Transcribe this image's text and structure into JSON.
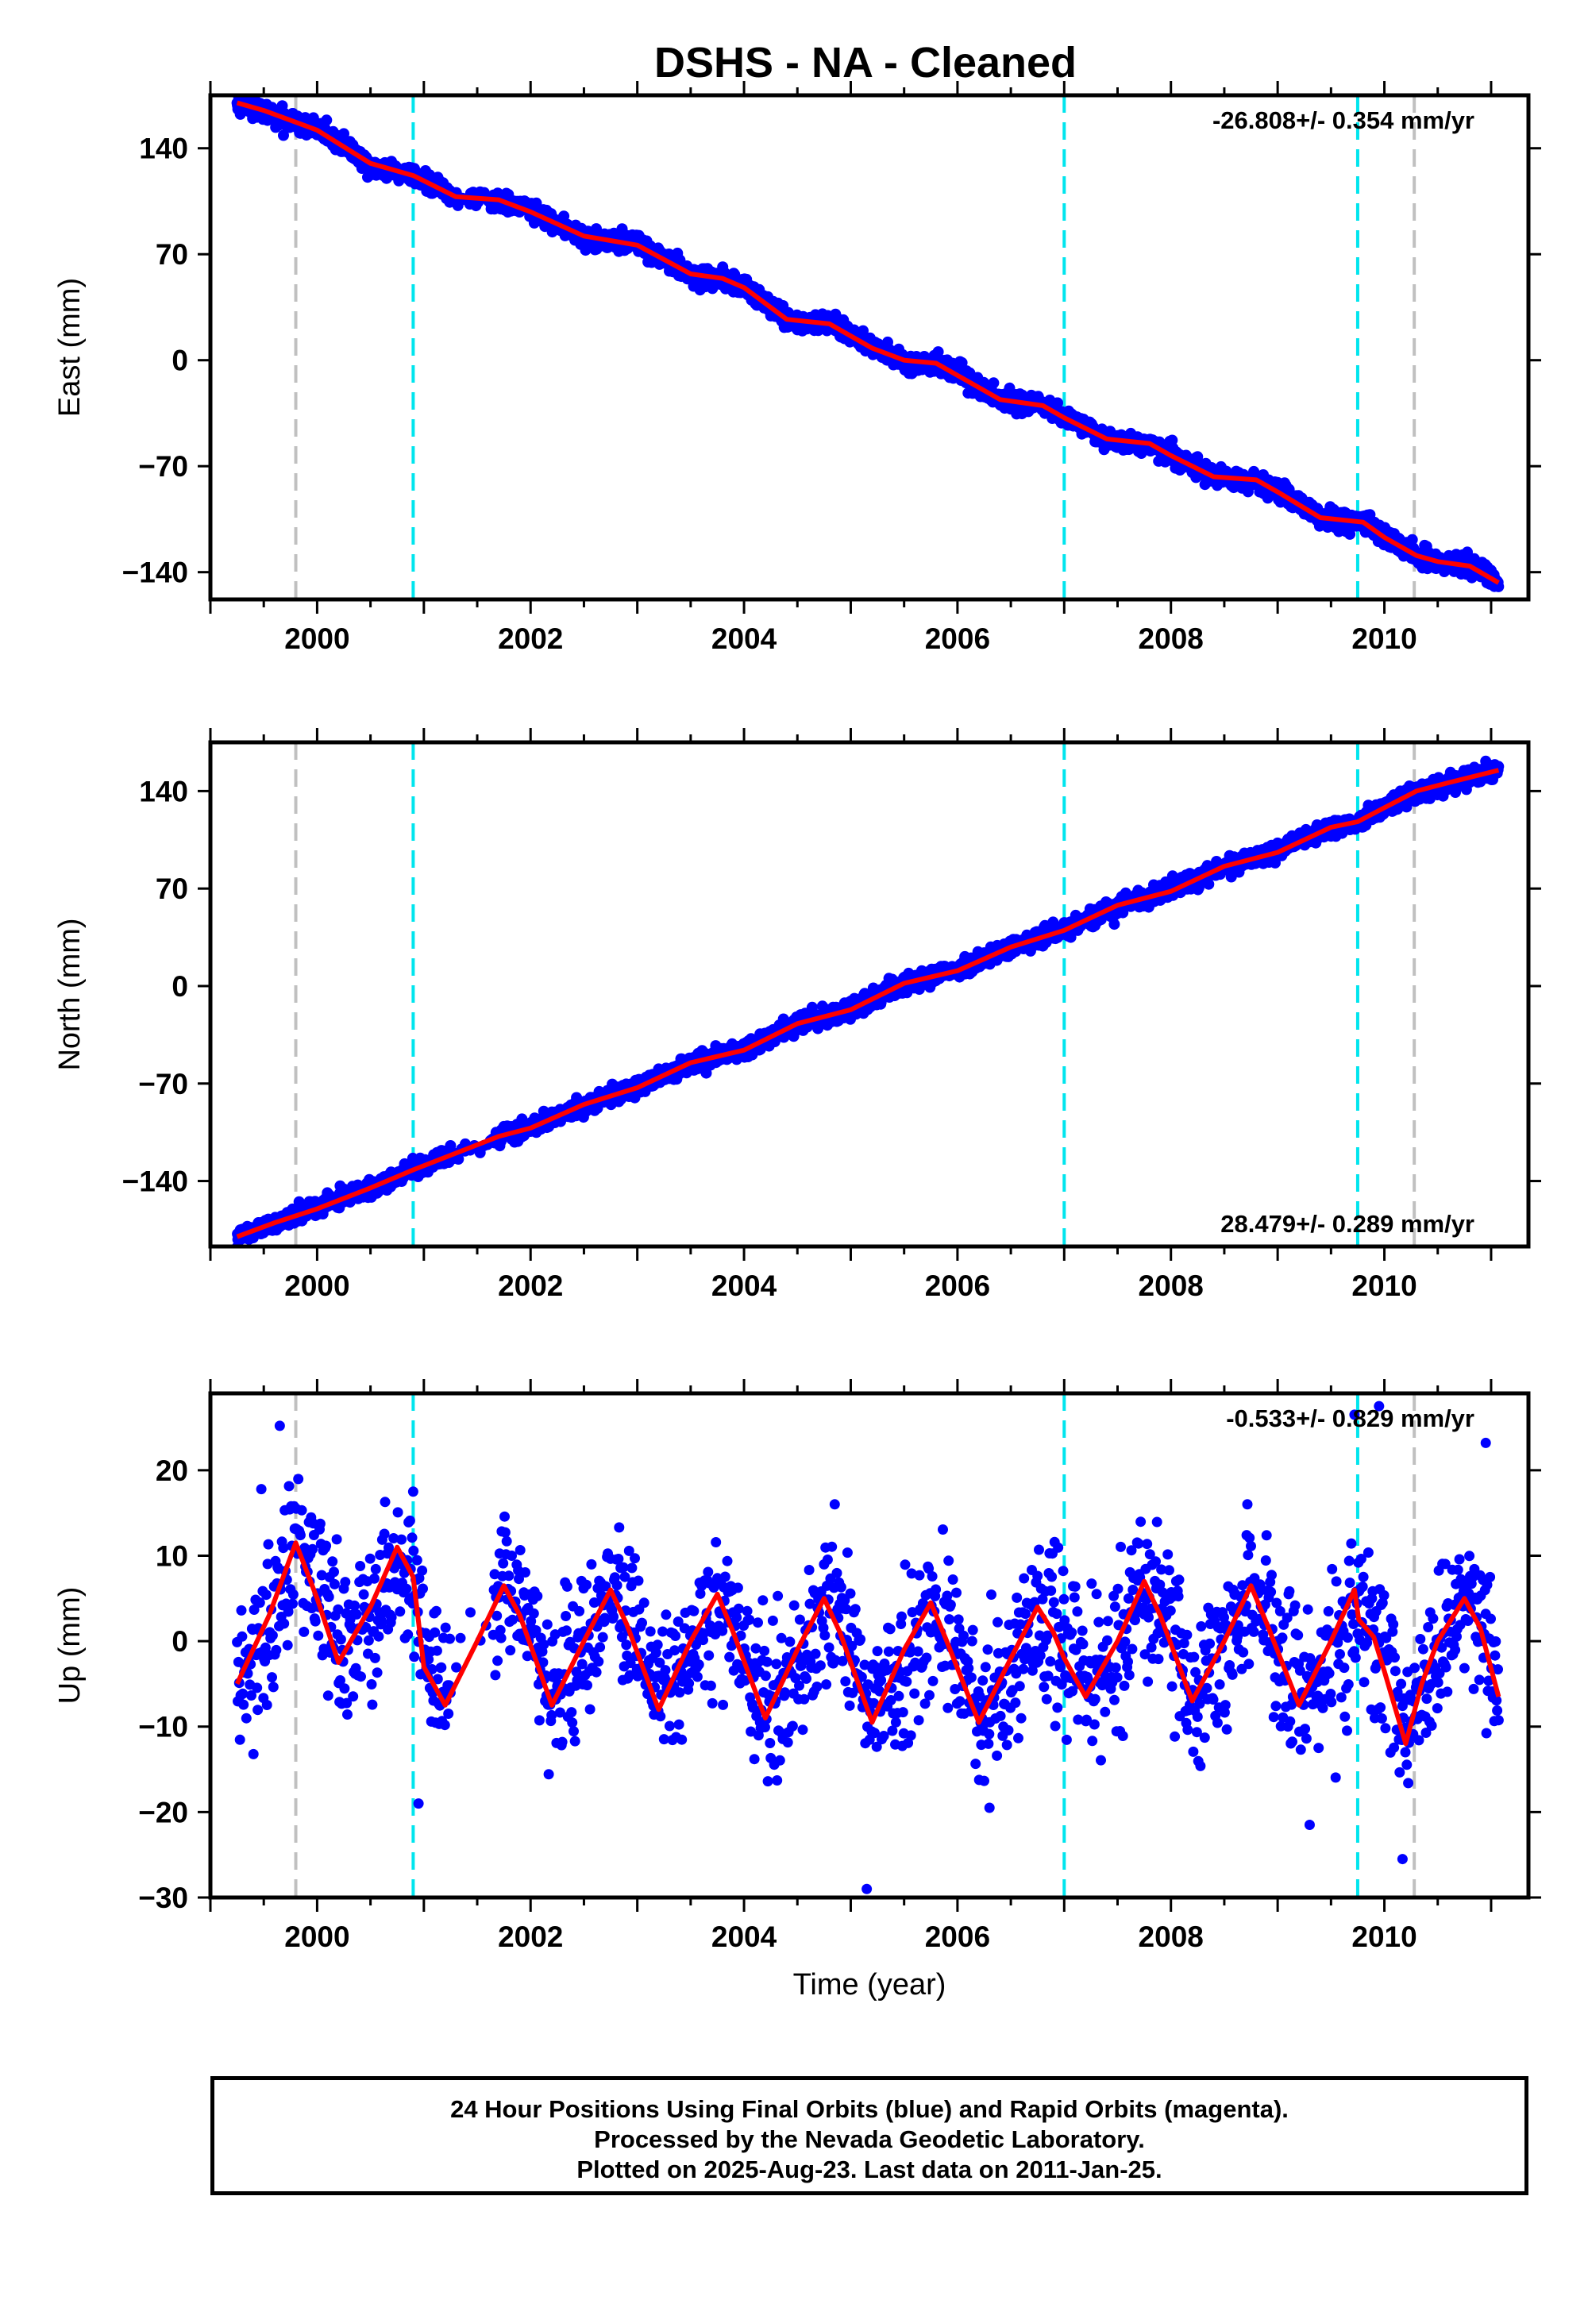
{
  "title": "DSHS  - NA - Cleaned",
  "colors": {
    "data": "#0000ff",
    "model": "#ff0000",
    "offset_antenna": "#00e5ee",
    "offset_other": "#c0c0c0"
  },
  "footer": {
    "line1": "24 Hour Positions Using Final Orbits (blue) and Rapid Orbits (magenta).",
    "line2": "Processed by the Nevada Geodetic Laboratory.",
    "line3": "Plotted on 2025-Aug-23. Last data on 2011-Jan-25."
  },
  "chart_data": [
    {
      "type": "scatter",
      "id": "east",
      "ylabel": "East (mm)",
      "xlabel": "",
      "xlim": [
        1999.0,
        2011.35
      ],
      "ylim": [
        -158,
        175
      ],
      "xticks": [
        2000,
        2002,
        2004,
        2006,
        2008,
        2010
      ],
      "yticks": [
        -140,
        -70,
        0,
        70,
        140
      ],
      "ytick_labels": [
        "−140",
        "−70",
        "0",
        "70",
        "140"
      ],
      "rate_label": "-26.808+/- 0.354 mm/yr",
      "rate_position": "top-right",
      "offsets_antenna": [
        2000.9,
        2007.0,
        2009.75
      ],
      "offsets_other": [
        1999.8,
        2010.28
      ],
      "data_start": 1999.25,
      "data_end": 2011.07,
      "rate_mm_per_yr": -26.808,
      "annual_amplitude": 4,
      "noise": 3,
      "model": [
        [
          1999.25,
          170
        ],
        [
          1999.5,
          165
        ],
        [
          2000.0,
          152
        ],
        [
          2000.5,
          130
        ],
        [
          2000.9,
          122
        ],
        [
          2001.3,
          108
        ],
        [
          2001.7,
          106
        ],
        [
          2002.0,
          98
        ],
        [
          2002.5,
          82
        ],
        [
          2003.0,
          76
        ],
        [
          2003.5,
          57
        ],
        [
          2003.8,
          54
        ],
        [
          2004.0,
          48
        ],
        [
          2004.4,
          27
        ],
        [
          2004.8,
          24
        ],
        [
          2005.2,
          8
        ],
        [
          2005.5,
          0
        ],
        [
          2005.8,
          -2
        ],
        [
          2006.0,
          -10
        ],
        [
          2006.4,
          -26
        ],
        [
          2006.8,
          -30
        ],
        [
          2007.0,
          -38
        ],
        [
          2007.4,
          -52
        ],
        [
          2007.8,
          -55
        ],
        [
          2008.0,
          -63
        ],
        [
          2008.4,
          -77
        ],
        [
          2008.8,
          -79
        ],
        [
          2009.0,
          -87
        ],
        [
          2009.4,
          -104
        ],
        [
          2009.8,
          -107
        ],
        [
          2010.0,
          -117
        ],
        [
          2010.3,
          -129
        ],
        [
          2010.5,
          -133
        ],
        [
          2010.8,
          -136
        ],
        [
          2011.07,
          -147
        ]
      ]
    },
    {
      "type": "scatter",
      "id": "north",
      "ylabel": "North (mm)",
      "xlabel": "",
      "xlim": [
        1999.0,
        2011.35
      ],
      "ylim": [
        -187,
        175
      ],
      "xticks": [
        2000,
        2002,
        2004,
        2006,
        2008,
        2010
      ],
      "yticks": [
        -140,
        -70,
        0,
        70,
        140
      ],
      "ytick_labels": [
        "−140",
        "−70",
        "0",
        "70",
        "140"
      ],
      "rate_label": "28.479+/- 0.289 mm/yr",
      "rate_position": "bottom-right",
      "offsets_antenna": [
        2000.9,
        2007.0,
        2009.75
      ],
      "offsets_other": [
        1999.8,
        2010.28
      ],
      "data_start": 1999.25,
      "data_end": 2011.07,
      "rate_mm_per_yr": 28.479,
      "annual_amplitude": 3,
      "noise": 3,
      "model": [
        [
          1999.25,
          -180
        ],
        [
          1999.6,
          -170
        ],
        [
          2000.0,
          -160
        ],
        [
          2000.5,
          -145
        ],
        [
          2000.9,
          -132
        ],
        [
          2001.3,
          -120
        ],
        [
          2001.7,
          -108
        ],
        [
          2002.0,
          -102
        ],
        [
          2002.5,
          -85
        ],
        [
          2003.0,
          -73
        ],
        [
          2003.5,
          -55
        ],
        [
          2004.0,
          -46
        ],
        [
          2004.5,
          -27
        ],
        [
          2005.0,
          -17
        ],
        [
          2005.5,
          2
        ],
        [
          2006.0,
          11
        ],
        [
          2006.5,
          28
        ],
        [
          2007.0,
          40
        ],
        [
          2007.5,
          58
        ],
        [
          2008.0,
          68
        ],
        [
          2008.5,
          86
        ],
        [
          2009.0,
          96
        ],
        [
          2009.5,
          114
        ],
        [
          2009.75,
          118
        ],
        [
          2010.0,
          128
        ],
        [
          2010.3,
          140
        ],
        [
          2010.6,
          146
        ],
        [
          2011.07,
          155
        ]
      ]
    },
    {
      "type": "scatter",
      "id": "up",
      "ylabel": "Up (mm)",
      "xlabel": "Time (year)",
      "xlim": [
        1999.0,
        2011.35
      ],
      "ylim": [
        -30,
        29
      ],
      "xticks": [
        2000,
        2002,
        2004,
        2006,
        2008,
        2010
      ],
      "yticks": [
        -30,
        -20,
        -10,
        0,
        10,
        20
      ],
      "ytick_labels": [
        "−30",
        "−20",
        "−10",
        "0",
        "10",
        "20"
      ],
      "rate_label": "-0.533+/- 0.829 mm/yr",
      "rate_position": "top-right",
      "offsets_antenna": [
        2000.9,
        2007.0,
        2009.75
      ],
      "offsets_other": [
        1999.8,
        2010.28
      ],
      "data_start": 1999.25,
      "data_end": 2011.07,
      "annual_amplitude": 7,
      "noise": 4.5,
      "outliers": [
        [
          1999.65,
          25.2
        ],
        [
          2005.15,
          -29
        ],
        [
          2009.72,
          26.5
        ],
        [
          2009.95,
          27.5
        ],
        [
          2010.95,
          23.2
        ],
        [
          2010.17,
          -25.5
        ],
        [
          2000.9,
          17.5
        ],
        [
          2000.95,
          -19
        ],
        [
          2006.3,
          -19.5
        ],
        [
          2009.3,
          -21.5
        ]
      ],
      "model": [
        [
          1999.25,
          -5
        ],
        [
          1999.55,
          3
        ],
        [
          1999.8,
          11.5
        ],
        [
          2000.0,
          5
        ],
        [
          2000.2,
          -2.5
        ],
        [
          2000.5,
          4
        ],
        [
          2000.75,
          11
        ],
        [
          2000.9,
          7.5
        ],
        [
          2001.0,
          -3
        ],
        [
          2001.2,
          -7.5
        ],
        [
          2001.5,
          0
        ],
        [
          2001.75,
          6.5
        ],
        [
          2001.9,
          3
        ],
        [
          2002.2,
          -7.5
        ],
        [
          2002.5,
          0
        ],
        [
          2002.75,
          6
        ],
        [
          2002.9,
          2
        ],
        [
          2003.2,
          -8
        ],
        [
          2003.5,
          0
        ],
        [
          2003.75,
          5.5
        ],
        [
          2003.9,
          1
        ],
        [
          2004.2,
          -9
        ],
        [
          2004.5,
          -1
        ],
        [
          2004.75,
          5
        ],
        [
          2004.9,
          1
        ],
        [
          2005.2,
          -9.5
        ],
        [
          2005.5,
          -1
        ],
        [
          2005.75,
          4.5
        ],
        [
          2005.9,
          0
        ],
        [
          2006.2,
          -9.5
        ],
        [
          2006.5,
          -2
        ],
        [
          2006.75,
          4
        ],
        [
          2006.9,
          1
        ],
        [
          2007.0,
          -2
        ],
        [
          2007.2,
          -6.5
        ],
        [
          2007.5,
          0
        ],
        [
          2007.75,
          7
        ],
        [
          2007.9,
          3
        ],
        [
          2008.2,
          -7
        ],
        [
          2008.5,
          0
        ],
        [
          2008.75,
          6.5
        ],
        [
          2008.9,
          2
        ],
        [
          2009.2,
          -7.5
        ],
        [
          2009.5,
          0
        ],
        [
          2009.72,
          6
        ],
        [
          2009.76,
          2.5
        ],
        [
          2009.9,
          0.5
        ],
        [
          2010.0,
          -3.5
        ],
        [
          2010.2,
          -12
        ],
        [
          2010.35,
          -5
        ],
        [
          2010.5,
          0
        ],
        [
          2010.75,
          5
        ],
        [
          2010.9,
          1.5
        ],
        [
          2011.07,
          -6.5
        ]
      ]
    }
  ]
}
